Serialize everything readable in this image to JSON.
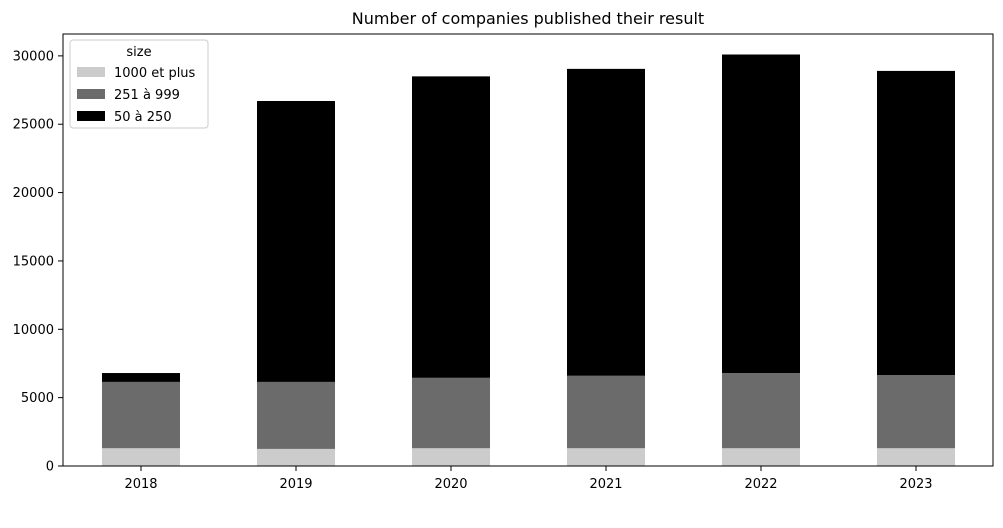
{
  "chart_data": {
    "type": "bar",
    "stacked": true,
    "title": "Number of companies published their result",
    "xlabel": "",
    "ylabel": "",
    "categories": [
      "2018",
      "2019",
      "2020",
      "2021",
      "2022",
      "2023"
    ],
    "ylim": [
      0,
      31600
    ],
    "yticks": [
      0,
      5000,
      10000,
      15000,
      20000,
      25000,
      30000
    ],
    "yticklabels": [
      "0",
      "5000",
      "10000",
      "15000",
      "20000",
      "25000",
      "30000"
    ],
    "grid": false,
    "legend": {
      "title": "size",
      "placement": "top-left"
    },
    "series": [
      {
        "name": "1000 et plus",
        "color": "#cccccc",
        "values": [
          1300,
          1250,
          1300,
          1300,
          1300,
          1300
        ]
      },
      {
        "name": "251 à 999",
        "color": "#6b6b6b",
        "values": [
          4850,
          4900,
          5150,
          5300,
          5500,
          5350
        ]
      },
      {
        "name": "50 à 250",
        "color": "#000000",
        "values": [
          650,
          20550,
          22050,
          22450,
          23300,
          22250
        ]
      }
    ]
  }
}
